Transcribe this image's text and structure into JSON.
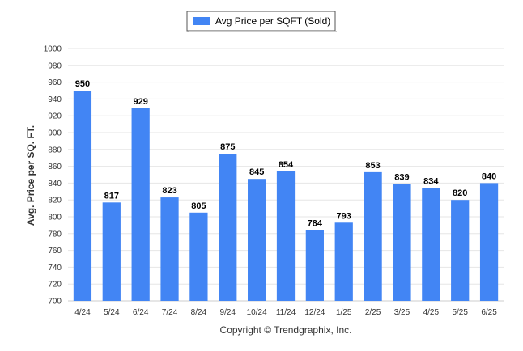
{
  "chart_data": {
    "type": "bar",
    "categories": [
      "4/24",
      "5/24",
      "6/24",
      "7/24",
      "8/24",
      "9/24",
      "10/24",
      "11/24",
      "12/24",
      "1/25",
      "2/25",
      "3/25",
      "4/25",
      "5/25",
      "6/25"
    ],
    "series": [
      {
        "name": "Avg Price per SQFT (Sold)",
        "values": [
          950,
          817,
          929,
          823,
          805,
          875,
          845,
          854,
          784,
          793,
          853,
          839,
          834,
          820,
          840
        ],
        "color": "#4285f4"
      }
    ],
    "ylabel": "Avg. Price per SQ. FT.",
    "xlabel": "",
    "ylim": [
      700,
      1000
    ],
    "yticks": [
      700,
      720,
      740,
      760,
      780,
      800,
      820,
      840,
      860,
      880,
      900,
      920,
      940,
      960,
      980,
      1000
    ],
    "grid": true,
    "legend_position": "top-center",
    "data_labels": true
  },
  "footer": {
    "credit": "Copyright © Trendgraphix, Inc."
  }
}
